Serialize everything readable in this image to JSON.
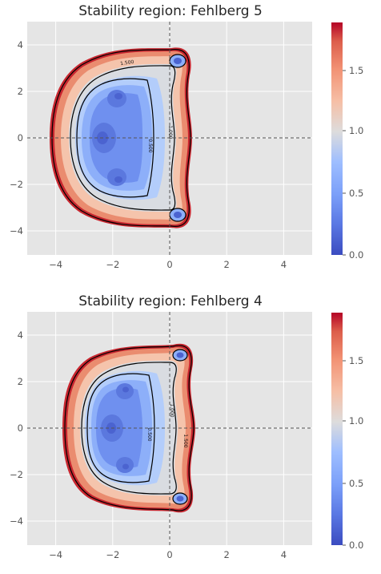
{
  "chart_data": [
    {
      "type": "contour",
      "title": "Stability region: Fehlberg 5",
      "xlabel": "",
      "ylabel": "",
      "xlim": [
        -5,
        5
      ],
      "ylim": [
        -5,
        5
      ],
      "xticks": [
        "−4",
        "−2",
        "0",
        "2",
        "4"
      ],
      "yticks": [
        "4",
        "2",
        "0",
        "−2",
        "−4"
      ],
      "colorbar": {
        "range": [
          0,
          1.9
        ],
        "ticks": [
          "0.0",
          "0.5",
          "1.0",
          "1.5"
        ],
        "colormap": "coolwarm"
      },
      "contour_levels": [
        "0.500",
        "1.000",
        "1.500"
      ],
      "grid": true,
      "reference_lines": [
        "x=0",
        "y=0"
      ],
      "region": {
        "left_extent": -4.05,
        "right_extent": 0.75,
        "top_extent": 3.75,
        "bottom_extent": -3.75,
        "lobes": [
          [
            0.3,
            3.3
          ],
          [
            0.3,
            -3.3
          ]
        ],
        "minima": [
          [
            -2.3,
            0.0
          ],
          [
            -1.8,
            1.8
          ],
          [
            -1.8,
            -1.8
          ]
        ]
      }
    },
    {
      "type": "contour",
      "title": "Stability region: Fehlberg 4",
      "xlabel": "",
      "ylabel": "",
      "xlim": [
        -5,
        5
      ],
      "ylim": [
        -5,
        5
      ],
      "xticks": [
        "−4",
        "−2",
        "0",
        "2",
        "4"
      ],
      "yticks": [
        "4",
        "2",
        "0",
        "−2",
        "−4"
      ],
      "colorbar": {
        "range": [
          0,
          1.9
        ],
        "ticks": [
          "0.0",
          "0.5",
          "1.0",
          "1.5"
        ],
        "colormap": "coolwarm"
      },
      "contour_levels": [
        "0.500",
        "1.000",
        "1.500"
      ],
      "grid": true,
      "reference_lines": [
        "x=0",
        "y=0"
      ],
      "region": {
        "left_extent": -3.5,
        "right_extent": 0.8,
        "top_extent": 3.45,
        "bottom_extent": -3.45,
        "lobes": [
          [
            0.4,
            3.1
          ],
          [
            0.4,
            -3.1
          ]
        ],
        "minima": [
          [
            -2.0,
            0.0
          ],
          [
            -1.6,
            1.6
          ],
          [
            -1.6,
            -1.6
          ]
        ]
      }
    }
  ]
}
